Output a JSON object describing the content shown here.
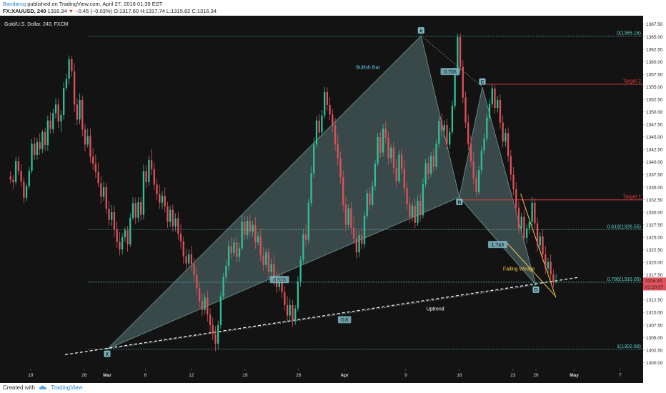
{
  "header": {
    "author": "Bandarsq",
    "published": "published on TradingView.com, April 27, 2018 01:39 EST",
    "symbol": "FX:XAUUSD, 240",
    "last": "1316.34",
    "change": "−0.45 (−0.03%)",
    "open": "O:1317.60",
    "high": "H:1317.74",
    "low": "L:1315.82",
    "close": "C:1316.34"
  },
  "footer": {
    "created_with": "Created with",
    "brand": "TradingView"
  },
  "colors": {
    "background": "#131313",
    "up_candle": "#2fbf96",
    "down_candle": "#e0505a",
    "pattern_fill": "#9fd9d9",
    "fib_line": "#5fcfcf",
    "target_line": "#e03c3c",
    "wedge_line": "#f0c84a",
    "uptrend_line": "#ffffff",
    "axis_bg": "#ffffff"
  },
  "chart_data": {
    "type": "candlestick",
    "title": "Gold/U.S. Dollar, 240, FXCM",
    "xlabel": "",
    "ylabel": "",
    "ylim": [
      1298.8,
      1369.2
    ],
    "y_ticks": [
      1300.0,
      1302.5,
      1305.0,
      1307.5,
      1310.0,
      1312.5,
      1315.0,
      1317.5,
      1320.0,
      1322.5,
      1325.0,
      1327.5,
      1330.0,
      1332.5,
      1335.0,
      1337.5,
      1340.0,
      1342.5,
      1345.0,
      1347.5,
      1350.0,
      1352.5,
      1355.0,
      1357.5,
      1360.0,
      1362.5,
      1365.0,
      1367.5
    ],
    "x_ticks": [
      "19",
      "26",
      "Mar",
      "6",
      "12",
      "19",
      "26",
      "Apr",
      "9",
      "16",
      "23",
      "26",
      "May",
      "7"
    ],
    "x_range": [
      "Feb 15",
      "May 10"
    ],
    "grid": false,
    "legend": "none",
    "price_markers": [
      {
        "label": "1316.34",
        "color": "#e0505a"
      },
      {
        "label": "02:20:57",
        "color": "#e0505a"
      }
    ],
    "harmonic_pattern": {
      "name": "Bullish Bat",
      "points": [
        {
          "label": "X",
          "date": "Mar 1",
          "price": 1302.7
        },
        {
          "label": "A",
          "date": "Apr 11",
          "price": 1365.2
        },
        {
          "label": "B",
          "date": "Apr 16",
          "price": 1333.0
        },
        {
          "label": "C",
          "date": "Apr 19",
          "price": 1355.0
        },
        {
          "label": "D",
          "date": "Apr 26",
          "price": 1315.5
        }
      ],
      "ratios": [
        {
          "text": "0.706",
          "price": 1358.0
        },
        {
          "text": "0.523",
          "price": 1316.5
        },
        {
          "text": "1.749",
          "price": 1323.5
        },
        {
          "text": "0.8",
          "price": 1308.5
        }
      ]
    },
    "fib_levels": [
      {
        "label": "0(1365.16)",
        "price": 1365.16
      },
      {
        "label": "0.618(1326.55)",
        "price": 1326.55
      },
      {
        "label": "0.786(1316.05)",
        "price": 1316.05
      },
      {
        "label": "1(1302.68)",
        "price": 1302.68
      }
    ],
    "targets": [
      {
        "label": "Target 1",
        "value_label": "1332.46",
        "price": 1332.46
      },
      {
        "label": "Target 2",
        "value_label": "1355.54",
        "price": 1355.54
      }
    ],
    "annotations": [
      {
        "text": "Bullish Bat",
        "color": "#5fcfe0"
      },
      {
        "text": "Falling Wedge",
        "color": "#f0c84a"
      },
      {
        "text": "Uptrend",
        "color": "#ffffff"
      }
    ],
    "candles": [
      [
        1337.2,
        1338.2,
        1335.8,
        1336.5
      ],
      [
        1336.5,
        1337.4,
        1334.6,
        1336.0
      ],
      [
        1336.0,
        1341.0,
        1335.5,
        1340.2
      ],
      [
        1340.2,
        1341.2,
        1337.4,
        1338.2
      ],
      [
        1338.2,
        1339.6,
        1335.0,
        1336.1
      ],
      [
        1336.1,
        1337.0,
        1331.8,
        1332.9
      ],
      [
        1332.9,
        1335.8,
        1332.2,
        1335.2
      ],
      [
        1335.2,
        1339.0,
        1334.7,
        1338.3
      ],
      [
        1338.3,
        1344.6,
        1337.7,
        1343.7
      ],
      [
        1343.7,
        1345.0,
        1340.4,
        1341.4
      ],
      [
        1341.4,
        1344.8,
        1340.5,
        1344.0
      ],
      [
        1344.0,
        1345.8,
        1341.4,
        1342.6
      ],
      [
        1342.6,
        1346.4,
        1341.8,
        1346.0
      ],
      [
        1346.0,
        1346.8,
        1342.3,
        1343.4
      ],
      [
        1343.4,
        1349.3,
        1342.3,
        1348.3
      ],
      [
        1348.3,
        1349.9,
        1345.7,
        1346.6
      ],
      [
        1346.6,
        1350.7,
        1345.8,
        1349.8
      ],
      [
        1349.8,
        1352.8,
        1348.7,
        1351.5
      ],
      [
        1351.5,
        1352.7,
        1346.8,
        1348.1
      ],
      [
        1348.1,
        1350.3,
        1346.0,
        1349.4
      ],
      [
        1349.4,
        1356.0,
        1348.5,
        1354.8
      ],
      [
        1354.8,
        1357.7,
        1354.2,
        1356.6
      ],
      [
        1356.6,
        1361.3,
        1355.5,
        1360.5
      ],
      [
        1360.5,
        1361.1,
        1357.0,
        1358.1
      ],
      [
        1358.1,
        1359.7,
        1350.0,
        1351.5
      ],
      [
        1351.5,
        1352.7,
        1347.4,
        1348.5
      ],
      [
        1348.5,
        1353.7,
        1347.6,
        1352.4
      ],
      [
        1352.4,
        1353.3,
        1345.1,
        1346.5
      ],
      [
        1346.5,
        1347.7,
        1342.1,
        1343.5
      ],
      [
        1343.5,
        1346.7,
        1342.9,
        1345.2
      ],
      [
        1345.2,
        1346.7,
        1339.9,
        1341.1
      ],
      [
        1341.1,
        1342.8,
        1338.4,
        1339.7
      ],
      [
        1339.7,
        1341.5,
        1336.8,
        1338.0
      ],
      [
        1338.0,
        1339.9,
        1335.0,
        1335.8
      ],
      [
        1335.8,
        1337.2,
        1331.7,
        1333.1
      ],
      [
        1333.1,
        1336.1,
        1332.3,
        1335.0
      ],
      [
        1335.0,
        1335.9,
        1329.7,
        1330.7
      ],
      [
        1330.7,
        1332.3,
        1327.4,
        1328.5
      ],
      [
        1328.5,
        1331.5,
        1327.3,
        1330.0
      ],
      [
        1330.0,
        1331.3,
        1325.1,
        1326.6
      ],
      [
        1326.6,
        1328.2,
        1322.9,
        1324.1
      ],
      [
        1324.1,
        1326.1,
        1321.4,
        1322.6
      ],
      [
        1322.6,
        1325.8,
        1321.6,
        1325.0
      ],
      [
        1325.0,
        1327.0,
        1324.1,
        1326.4
      ],
      [
        1326.4,
        1327.3,
        1322.1,
        1323.6
      ],
      [
        1323.6,
        1329.8,
        1323.1,
        1328.9
      ],
      [
        1328.9,
        1333.0,
        1328.4,
        1331.8
      ],
      [
        1331.8,
        1332.9,
        1327.7,
        1328.9
      ],
      [
        1328.9,
        1333.0,
        1328.0,
        1332.0
      ],
      [
        1332.0,
        1333.1,
        1328.4,
        1329.5
      ],
      [
        1329.5,
        1339.5,
        1328.6,
        1338.2
      ],
      [
        1338.2,
        1339.4,
        1334.9,
        1336.0
      ],
      [
        1336.0,
        1341.3,
        1335.3,
        1340.4
      ],
      [
        1340.4,
        1342.6,
        1337.4,
        1338.6
      ],
      [
        1338.6,
        1339.9,
        1334.5,
        1335.5
      ],
      [
        1335.5,
        1336.6,
        1332.4,
        1333.6
      ],
      [
        1333.6,
        1335.5,
        1330.7,
        1331.9
      ],
      [
        1331.9,
        1334.2,
        1330.6,
        1333.3
      ],
      [
        1333.3,
        1334.9,
        1330.0,
        1331.2
      ],
      [
        1331.2,
        1332.1,
        1326.9,
        1328.1
      ],
      [
        1328.1,
        1331.3,
        1327.0,
        1330.5
      ],
      [
        1330.5,
        1331.5,
        1326.1,
        1327.2
      ],
      [
        1327.2,
        1329.8,
        1326.2,
        1328.8
      ],
      [
        1328.8,
        1330.1,
        1324.5,
        1325.7
      ],
      [
        1325.7,
        1327.6,
        1322.7,
        1324.2
      ],
      [
        1324.2,
        1325.1,
        1319.7,
        1321.2
      ],
      [
        1321.2,
        1322.7,
        1318.6,
        1319.8
      ],
      [
        1319.8,
        1322.6,
        1319.2,
        1321.6
      ],
      [
        1321.6,
        1323.3,
        1318.4,
        1319.6
      ],
      [
        1319.6,
        1320.9,
        1316.2,
        1317.5
      ],
      [
        1317.5,
        1319.0,
        1313.5,
        1314.9
      ],
      [
        1314.9,
        1316.0,
        1311.1,
        1312.3
      ],
      [
        1312.3,
        1313.9,
        1309.3,
        1310.5
      ],
      [
        1310.5,
        1313.8,
        1309.7,
        1313.0
      ],
      [
        1313.0,
        1314.3,
        1308.2,
        1309.6
      ],
      [
        1309.6,
        1310.9,
        1306.2,
        1307.5
      ],
      [
        1307.5,
        1309.0,
        1304.5,
        1305.7
      ],
      [
        1305.7,
        1307.3,
        1302.3,
        1303.8
      ],
      [
        1303.8,
        1308.4,
        1302.7,
        1307.5
      ],
      [
        1307.5,
        1314.2,
        1306.8,
        1313.2
      ],
      [
        1313.2,
        1317.9,
        1312.5,
        1317.1
      ],
      [
        1317.1,
        1320.5,
        1316.1,
        1319.3
      ],
      [
        1319.3,
        1324.4,
        1318.4,
        1323.3
      ],
      [
        1323.3,
        1325.1,
        1320.7,
        1321.9
      ],
      [
        1321.9,
        1324.8,
        1321.2,
        1324.0
      ],
      [
        1324.0,
        1325.1,
        1320.0,
        1321.1
      ],
      [
        1321.1,
        1323.9,
        1320.1,
        1322.8
      ],
      [
        1322.8,
        1329.4,
        1322.4,
        1328.1
      ],
      [
        1328.1,
        1329.3,
        1324.4,
        1325.5
      ],
      [
        1325.5,
        1329.2,
        1324.7,
        1328.3
      ],
      [
        1328.3,
        1329.5,
        1325.0,
        1326.1
      ],
      [
        1326.1,
        1328.3,
        1325.2,
        1327.5
      ],
      [
        1327.5,
        1329.0,
        1322.7,
        1324.0
      ],
      [
        1324.0,
        1326.1,
        1323.4,
        1325.2
      ],
      [
        1325.2,
        1326.8,
        1320.2,
        1321.4
      ],
      [
        1321.4,
        1323.0,
        1318.3,
        1319.5
      ],
      [
        1319.5,
        1322.8,
        1319.0,
        1322.0
      ],
      [
        1322.0,
        1323.0,
        1316.9,
        1318.1
      ],
      [
        1318.1,
        1320.8,
        1317.3,
        1319.7
      ],
      [
        1319.7,
        1321.6,
        1315.3,
        1316.6
      ],
      [
        1316.6,
        1318.3,
        1313.9,
        1315.1
      ],
      [
        1315.1,
        1317.8,
        1314.3,
        1316.9
      ],
      [
        1316.9,
        1318.1,
        1312.9,
        1314.1
      ],
      [
        1314.1,
        1315.3,
        1310.4,
        1311.5
      ],
      [
        1311.5,
        1313.3,
        1308.1,
        1309.4
      ],
      [
        1309.4,
        1312.8,
        1308.3,
        1311.5
      ],
      [
        1311.5,
        1312.5,
        1307.2,
        1308.3
      ],
      [
        1308.3,
        1311.5,
        1307.5,
        1310.8
      ],
      [
        1310.8,
        1317.2,
        1310.2,
        1316.2
      ],
      [
        1316.2,
        1321.3,
        1315.2,
        1320.5
      ],
      [
        1320.5,
        1326.7,
        1319.8,
        1325.6
      ],
      [
        1325.6,
        1327.6,
        1323.2,
        1324.5
      ],
      [
        1324.5,
        1332.8,
        1323.8,
        1331.9
      ],
      [
        1331.9,
        1339.1,
        1331.2,
        1337.8
      ],
      [
        1337.8,
        1344.9,
        1336.9,
        1343.5
      ],
      [
        1343.5,
        1349.2,
        1342.8,
        1348.3
      ],
      [
        1348.3,
        1349.6,
        1344.7,
        1345.9
      ],
      [
        1345.9,
        1350.4,
        1345.5,
        1349.3
      ],
      [
        1349.3,
        1355.0,
        1348.7,
        1354.0
      ],
      [
        1354.0,
        1354.9,
        1350.3,
        1351.4
      ],
      [
        1351.4,
        1352.9,
        1348.4,
        1349.5
      ],
      [
        1349.5,
        1350.6,
        1346.0,
        1347.3
      ],
      [
        1347.3,
        1348.8,
        1342.3,
        1343.6
      ],
      [
        1343.6,
        1345.4,
        1339.4,
        1340.8
      ],
      [
        1340.8,
        1342.1,
        1335.7,
        1337.0
      ],
      [
        1337.0,
        1338.3,
        1330.2,
        1331.5
      ],
      [
        1331.5,
        1333.2,
        1326.2,
        1327.5
      ],
      [
        1327.5,
        1331.6,
        1326.8,
        1330.8
      ],
      [
        1330.8,
        1332.1,
        1325.6,
        1326.9
      ],
      [
        1326.9,
        1329.3,
        1323.7,
        1324.8
      ],
      [
        1324.8,
        1326.6,
        1320.8,
        1322.0
      ],
      [
        1322.0,
        1326.3,
        1321.1,
        1325.4
      ],
      [
        1325.4,
        1326.8,
        1322.6,
        1323.7
      ],
      [
        1323.7,
        1330.2,
        1323.0,
        1329.3
      ],
      [
        1329.3,
        1334.6,
        1328.7,
        1333.8
      ],
      [
        1333.8,
        1335.0,
        1330.4,
        1331.5
      ],
      [
        1331.5,
        1336.3,
        1331.1,
        1335.2
      ],
      [
        1335.2,
        1340.5,
        1334.3,
        1339.7
      ],
      [
        1339.7,
        1345.8,
        1339.2,
        1345.0
      ],
      [
        1345.0,
        1346.1,
        1340.8,
        1341.9
      ],
      [
        1341.9,
        1347.6,
        1341.1,
        1346.7
      ],
      [
        1346.7,
        1348.2,
        1343.8,
        1344.9
      ],
      [
        1344.9,
        1346.0,
        1339.6,
        1340.8
      ],
      [
        1340.8,
        1343.6,
        1339.8,
        1342.9
      ],
      [
        1342.9,
        1344.1,
        1337.8,
        1338.9
      ],
      [
        1338.9,
        1340.6,
        1334.9,
        1336.2
      ],
      [
        1336.2,
        1342.4,
        1335.7,
        1341.5
      ],
      [
        1341.5,
        1342.6,
        1337.6,
        1338.7
      ],
      [
        1338.7,
        1340.4,
        1333.5,
        1334.8
      ],
      [
        1334.8,
        1336.1,
        1330.5,
        1331.6
      ],
      [
        1331.6,
        1333.1,
        1327.8,
        1329.1
      ],
      [
        1329.1,
        1332.0,
        1328.2,
        1331.3
      ],
      [
        1331.3,
        1332.8,
        1326.8,
        1327.9
      ],
      [
        1327.9,
        1333.4,
        1327.3,
        1332.3
      ],
      [
        1332.3,
        1333.7,
        1328.2,
        1329.4
      ],
      [
        1329.4,
        1336.8,
        1328.8,
        1335.6
      ],
      [
        1335.6,
        1340.7,
        1334.9,
        1339.8
      ],
      [
        1339.8,
        1341.0,
        1336.5,
        1337.7
      ],
      [
        1337.7,
        1342.1,
        1337.0,
        1341.3
      ],
      [
        1341.3,
        1342.6,
        1338.0,
        1339.1
      ],
      [
        1339.1,
        1344.5,
        1338.5,
        1343.7
      ],
      [
        1343.7,
        1349.0,
        1342.9,
        1348.2
      ],
      [
        1348.2,
        1349.7,
        1345.1,
        1346.3
      ],
      [
        1346.3,
        1348.4,
        1344.8,
        1347.4
      ],
      [
        1347.4,
        1348.6,
        1342.4,
        1343.5
      ],
      [
        1343.5,
        1346.9,
        1342.7,
        1346.0
      ],
      [
        1346.0,
        1352.3,
        1345.5,
        1351.2
      ],
      [
        1351.2,
        1358.9,
        1350.5,
        1357.8
      ],
      [
        1357.8,
        1365.6,
        1357.1,
        1364.9
      ],
      [
        1364.9,
        1365.7,
        1358.2,
        1359.0
      ],
      [
        1359.0,
        1360.3,
        1351.8,
        1352.9
      ],
      [
        1352.9,
        1354.1,
        1346.8,
        1347.9
      ],
      [
        1347.9,
        1349.5,
        1342.4,
        1343.6
      ],
      [
        1343.6,
        1345.3,
        1339.1,
        1340.2
      ],
      [
        1340.2,
        1342.1,
        1335.5,
        1336.8
      ],
      [
        1336.8,
        1338.3,
        1333.1,
        1334.0
      ],
      [
        1334.0,
        1339.3,
        1333.5,
        1338.4
      ],
      [
        1338.4,
        1343.2,
        1337.7,
        1342.3
      ],
      [
        1342.3,
        1345.8,
        1341.5,
        1344.7
      ],
      [
        1344.7,
        1349.7,
        1344.1,
        1348.9
      ],
      [
        1348.9,
        1352.5,
        1348.2,
        1351.6
      ],
      [
        1351.6,
        1355.4,
        1350.9,
        1354.7
      ],
      [
        1354.7,
        1355.3,
        1349.7,
        1350.8
      ],
      [
        1350.8,
        1353.2,
        1349.9,
        1352.4
      ],
      [
        1352.4,
        1353.5,
        1346.7,
        1347.9
      ],
      [
        1347.9,
        1349.3,
        1342.9,
        1344.1
      ],
      [
        1344.1,
        1346.7,
        1343.1,
        1345.8
      ],
      [
        1345.8,
        1346.9,
        1340.1,
        1341.2
      ],
      [
        1341.2,
        1342.4,
        1336.3,
        1337.5
      ],
      [
        1337.5,
        1339.0,
        1333.4,
        1334.6
      ],
      [
        1334.6,
        1336.0,
        1329.6,
        1330.9
      ],
      [
        1330.9,
        1332.1,
        1325.7,
        1326.8
      ],
      [
        1326.8,
        1329.9,
        1325.9,
        1329.1
      ],
      [
        1329.1,
        1330.6,
        1323.7,
        1324.9
      ],
      [
        1324.9,
        1327.6,
        1323.8,
        1326.8
      ],
      [
        1326.8,
        1328.9,
        1325.8,
        1328.1
      ],
      [
        1328.1,
        1333.0,
        1327.3,
        1331.9
      ],
      [
        1331.9,
        1332.8,
        1326.6,
        1327.8
      ],
      [
        1327.8,
        1328.9,
        1322.2,
        1323.4
      ],
      [
        1323.4,
        1326.0,
        1322.5,
        1325.2
      ],
      [
        1325.2,
        1326.5,
        1320.3,
        1321.6
      ],
      [
        1321.6,
        1323.3,
        1317.7,
        1318.8
      ],
      [
        1318.8,
        1320.9,
        1317.9,
        1320.1
      ],
      [
        1320.1,
        1321.6,
        1316.5,
        1317.6
      ],
      [
        1317.6,
        1318.6,
        1315.0,
        1316.0
      ],
      [
        1316.0,
        1317.7,
        1315.8,
        1316.3
      ]
    ]
  }
}
